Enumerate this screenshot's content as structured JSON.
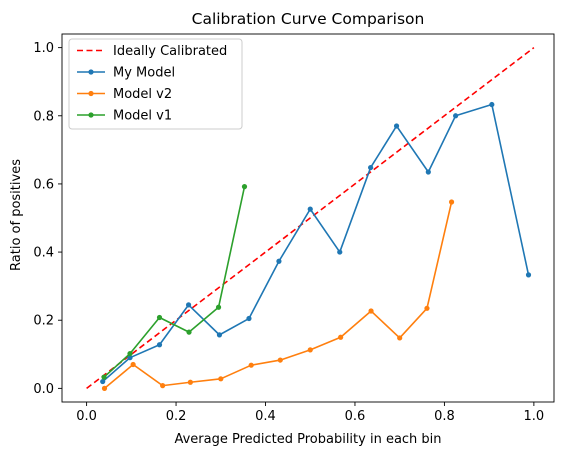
{
  "chart_data": {
    "type": "line",
    "title": "Calibration Curve Comparison",
    "xlabel": "Average Predicted Probability in each bin",
    "ylabel": "Ratio of positives",
    "xlim": [
      -0.055,
      1.045
    ],
    "ylim": [
      -0.04,
      1.04
    ],
    "xticks": [
      0.0,
      0.2,
      0.4,
      0.6,
      0.8,
      1.0
    ],
    "xtick_labels": [
      "0.0",
      "0.2",
      "0.4",
      "0.6",
      "0.8",
      "1.0"
    ],
    "yticks": [
      0.0,
      0.2,
      0.4,
      0.6,
      0.8,
      1.0
    ],
    "ytick_labels": [
      "0.0",
      "0.2",
      "0.4",
      "0.6",
      "0.8",
      "1.0"
    ],
    "grid": false,
    "legend_position": "top-left",
    "series": [
      {
        "name": "Ideally Calibrated",
        "style": "dashed",
        "marker": false,
        "color": "#ff0000",
        "x": [
          0.0,
          1.0
        ],
        "y": [
          0.0,
          1.0
        ]
      },
      {
        "name": "My Model",
        "style": "solid",
        "marker": true,
        "color": "#1f77b4",
        "x": [
          0.036,
          0.097,
          0.163,
          0.228,
          0.297,
          0.363,
          0.43,
          0.5,
          0.566,
          0.635,
          0.693,
          0.764,
          0.825,
          0.906,
          0.988
        ],
        "y": [
          0.02,
          0.09,
          0.128,
          0.245,
          0.157,
          0.205,
          0.373,
          0.526,
          0.4,
          0.648,
          0.77,
          0.635,
          0.8,
          0.833,
          0.333
        ]
      },
      {
        "name": "Model v2",
        "style": "solid",
        "marker": true,
        "color": "#ff7f0e",
        "x": [
          0.04,
          0.104,
          0.17,
          0.232,
          0.3,
          0.368,
          0.433,
          0.5,
          0.568,
          0.636,
          0.7,
          0.761,
          0.816
        ],
        "y": [
          0.0,
          0.07,
          0.008,
          0.018,
          0.028,
          0.068,
          0.083,
          0.113,
          0.15,
          0.227,
          0.148,
          0.235,
          0.547
        ]
      },
      {
        "name": "Model v1",
        "style": "solid",
        "marker": true,
        "color": "#2ca02c",
        "x": [
          0.039,
          0.097,
          0.163,
          0.229,
          0.295,
          0.353
        ],
        "y": [
          0.033,
          0.102,
          0.208,
          0.165,
          0.238,
          0.592
        ]
      }
    ]
  }
}
